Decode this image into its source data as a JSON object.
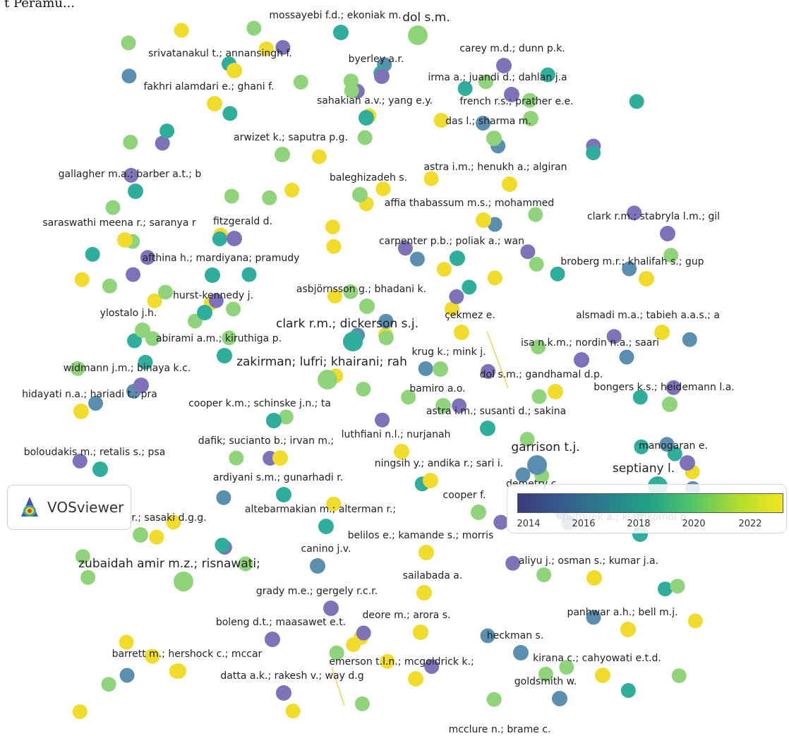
{
  "header": {
    "text": "t Peramu..."
  },
  "logo": {
    "text": "VOSviewer"
  },
  "legend": {
    "ticks": [
      "2014",
      "2016",
      "2018",
      "2020",
      "2022"
    ],
    "min": 2013,
    "max": 2023
  },
  "palette": {
    "purple": "#7e72b8",
    "blue": "#5a8fb0",
    "teal": "#2fae9c",
    "green": "#8fd47a",
    "yellow": "#f1dc2c"
  },
  "nodes": [
    {
      "label": "mossayebi f.d.; ekoniak m.",
      "color": "teal"
    },
    {
      "label": "dol s.m.",
      "color": "green",
      "big": true
    },
    {
      "label": "srivatanakul t.; annansingh f.",
      "color": "yellow"
    },
    {
      "label": "byerley a.r.",
      "color": "purple"
    },
    {
      "label": "carey m.d.; dunn p.k.",
      "color": "purple"
    },
    {
      "label": "irma a.; juandi d.; dahlan j.a",
      "color": "purple"
    },
    {
      "label": "fakhri alamdari e.; ghani f.",
      "color": "yellow"
    },
    {
      "label": "sahakian a.v.; yang e.y.",
      "color": "teal"
    },
    {
      "label": "french r.s.; prather e.e.",
      "color": "green"
    },
    {
      "label": "das l.; sharma m.",
      "color": "green"
    },
    {
      "label": "arwizet k.; saputra p.g.",
      "color": "green"
    },
    {
      "label": "astra i.m.; henukh a.; algiran",
      "color": "yellow"
    },
    {
      "label": "gallagher m.a.; barber a.t.; b",
      "color": "teal"
    },
    {
      "label": "baleghizadeh s.",
      "color": "green"
    },
    {
      "label": "affia thabassum m.s.; mohammed",
      "color": "yellow"
    },
    {
      "label": "saraswathi meena r.; saranya r",
      "color": "yellow"
    },
    {
      "label": "fitzgerald d.",
      "color": "purple"
    },
    {
      "label": "clark r.m.; stabryla l.m.; gil",
      "color": "purple"
    },
    {
      "label": "carpenter p.b.; poliak a.; wan",
      "color": "teal"
    },
    {
      "label": "afthina h.; mardiyana; pramudy",
      "color": "teal"
    },
    {
      "label": "broberg m.r.; khalifah s.; gup",
      "color": "yellow"
    },
    {
      "label": "asbjörnsson g.; bhadani k.",
      "color": "green"
    },
    {
      "label": "hurst-kennedy j.",
      "color": "teal"
    },
    {
      "label": "ylostalo j.h.",
      "color": "green"
    },
    {
      "label": "clark r.m.; dickerson s.j.",
      "color": "teal",
      "big": true
    },
    {
      "label": "çekmez e.",
      "color": "yellow"
    },
    {
      "label": "alsmadi m.a.; tabieh a.a.s.; a",
      "color": "yellow"
    },
    {
      "label": "abirami a.m.; kiruthiga p.",
      "color": "teal"
    },
    {
      "label": "isa n.k.m.; nordin n.a.; saari",
      "color": "purple"
    },
    {
      "label": "widmann j.m.; binaya k.c.",
      "color": "purple"
    },
    {
      "label": "zakirman; lufri; khairani; rah",
      "color": "green",
      "big": true
    },
    {
      "label": "krug k.; mink j.",
      "color": "green"
    },
    {
      "label": "dol s.m.; gandhamal d.p.",
      "color": "yellow"
    },
    {
      "label": "bongers k.s.; heidemann l.a.",
      "color": "green"
    },
    {
      "label": "hidayati n.a.; hariadi t.; pra",
      "color": "yellow"
    },
    {
      "label": "cooper k.m.; schinske j.n.; ta",
      "color": "teal"
    },
    {
      "label": "bamiro a.o.",
      "color": "green"
    },
    {
      "label": "astra i.m.; susanti d.; sakina",
      "color": "teal"
    },
    {
      "label": "dafik; sucianto b.; irvan m.;",
      "color": "yellow"
    },
    {
      "label": "luthfiani n.l.; nurjanah",
      "color": "yellow"
    },
    {
      "label": "garrison t.j.",
      "color": "blue",
      "big": true
    },
    {
      "label": "manogaran e.",
      "color": "purple"
    },
    {
      "label": "boloudakis m.; retalis s.; psa",
      "color": "teal"
    },
    {
      "label": "ningsih y.; andika r.; sari i.",
      "color": "yellow"
    },
    {
      "label": "septiany l.",
      "color": "teal",
      "big": true
    },
    {
      "label": "ardiyani s.m.; gunarhadi r.",
      "color": "teal"
    },
    {
      "label": "demetry c.",
      "color": "purple"
    },
    {
      "label": "cooper f.",
      "color": "green"
    },
    {
      "label": "altebarmakian m.; alterman r.;",
      "color": "teal"
    },
    {
      "label": "corbo a.r.; sasaki d.g.g.",
      "color": "green"
    },
    {
      "label": "putpuek a.; kiattikomol p.",
      "color": "teal"
    },
    {
      "label": "belilos e.; kamande s.; morris",
      "color": "yellow"
    },
    {
      "label": "canino j.v.",
      "color": "blue"
    },
    {
      "label": "zubaidah amir m.z.; risnawati;",
      "color": "green",
      "big": true
    },
    {
      "label": "aliyu j.; osman s.; kumar j.a.",
      "color": "yellow"
    },
    {
      "label": "sailabada a.",
      "color": "yellow"
    },
    {
      "label": "grady m.e.; gergely r.c.r.",
      "color": "purple"
    },
    {
      "label": "panhwar a.h.; bell m.j.",
      "color": "yellow"
    },
    {
      "label": "boleng d.t.; maasawet e.t.",
      "color": "purple"
    },
    {
      "label": "deore m.; arora s.",
      "color": "yellow"
    },
    {
      "label": "heckman s.",
      "color": "blue"
    },
    {
      "label": "barrett m.; hershock c.; mccar",
      "color": "yellow"
    },
    {
      "label": "emerson t.l.n.; mcgoldrick k.;",
      "color": "yellow"
    },
    {
      "label": "kirana c.; cahyowati e.t.d.",
      "color": "yellow"
    },
    {
      "label": "datta a.k.; rakesh v.; way d.g",
      "color": "purple"
    },
    {
      "label": "goldsmith w.",
      "color": "blue"
    },
    {
      "label": "mcclure n.; brame c.",
      "color": "yellow"
    }
  ]
}
